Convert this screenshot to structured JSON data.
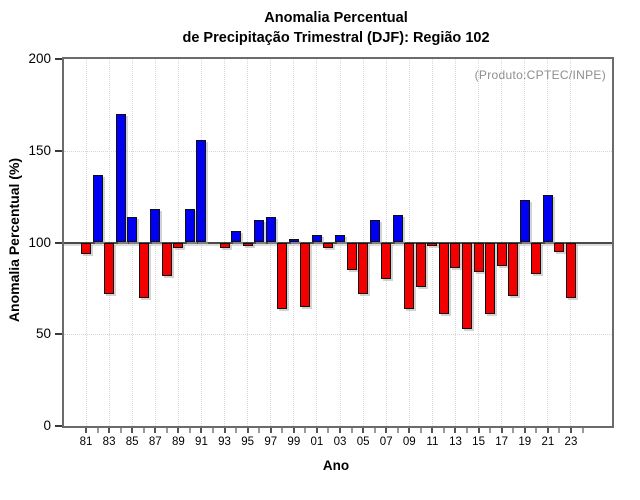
{
  "header": {
    "title_line1": "Anomalia Percentual",
    "title_line2": "de Precipitação Trimestral (DJF): Região 102"
  },
  "annotation": {
    "source": "(Produto:CPTEC/INPE)"
  },
  "chart_data": {
    "type": "bar",
    "title": "Anomalia Percentual de Precipitação Trimestral (DJF): Região 102",
    "xlabel": "Ano",
    "ylabel": "Anomalia Percentual (%)",
    "ylim": [
      0,
      200
    ],
    "yticks": [
      0,
      50,
      100,
      150,
      200
    ],
    "baseline": 100,
    "grid": {
      "horizontal_dotted_at": [
        50,
        150
      ],
      "vertical_dotted_at_odd_years": true
    },
    "legend": null,
    "colors": {
      "above_baseline": "#0000f2",
      "below_baseline": "#f20000",
      "bar_border": "#101010",
      "axis": "#6b6b6b",
      "annotation_gray": "#8e8e8e"
    },
    "categories": [
      "81",
      "82",
      "83",
      "84",
      "85",
      "86",
      "87",
      "88",
      "89",
      "90",
      "91",
      "92",
      "93",
      "94",
      "95",
      "96",
      "97",
      "98",
      "99",
      "00",
      "01",
      "02",
      "03",
      "04",
      "05",
      "06",
      "07",
      "08",
      "09",
      "10",
      "11",
      "12",
      "13",
      "14",
      "15",
      "16",
      "17",
      "18",
      "19",
      "20",
      "21",
      "22",
      "23",
      "24"
    ],
    "values": [
      94,
      137,
      72,
      170,
      114,
      70,
      118,
      82,
      97,
      118,
      156,
      100,
      97,
      106,
      98,
      112,
      114,
      64,
      102,
      65,
      104,
      97,
      104,
      85,
      72,
      112,
      80,
      115,
      64,
      76,
      98,
      61,
      86,
      53,
      84,
      61,
      87,
      71,
      123,
      83,
      126,
      95,
      70,
      null
    ],
    "labeled_xticks": [
      "81",
      "83",
      "85",
      "87",
      "89",
      "91",
      "93",
      "95",
      "97",
      "99",
      "01",
      "03",
      "05",
      "07",
      "09",
      "11",
      "13",
      "15",
      "17",
      "19",
      "21",
      "23"
    ]
  }
}
